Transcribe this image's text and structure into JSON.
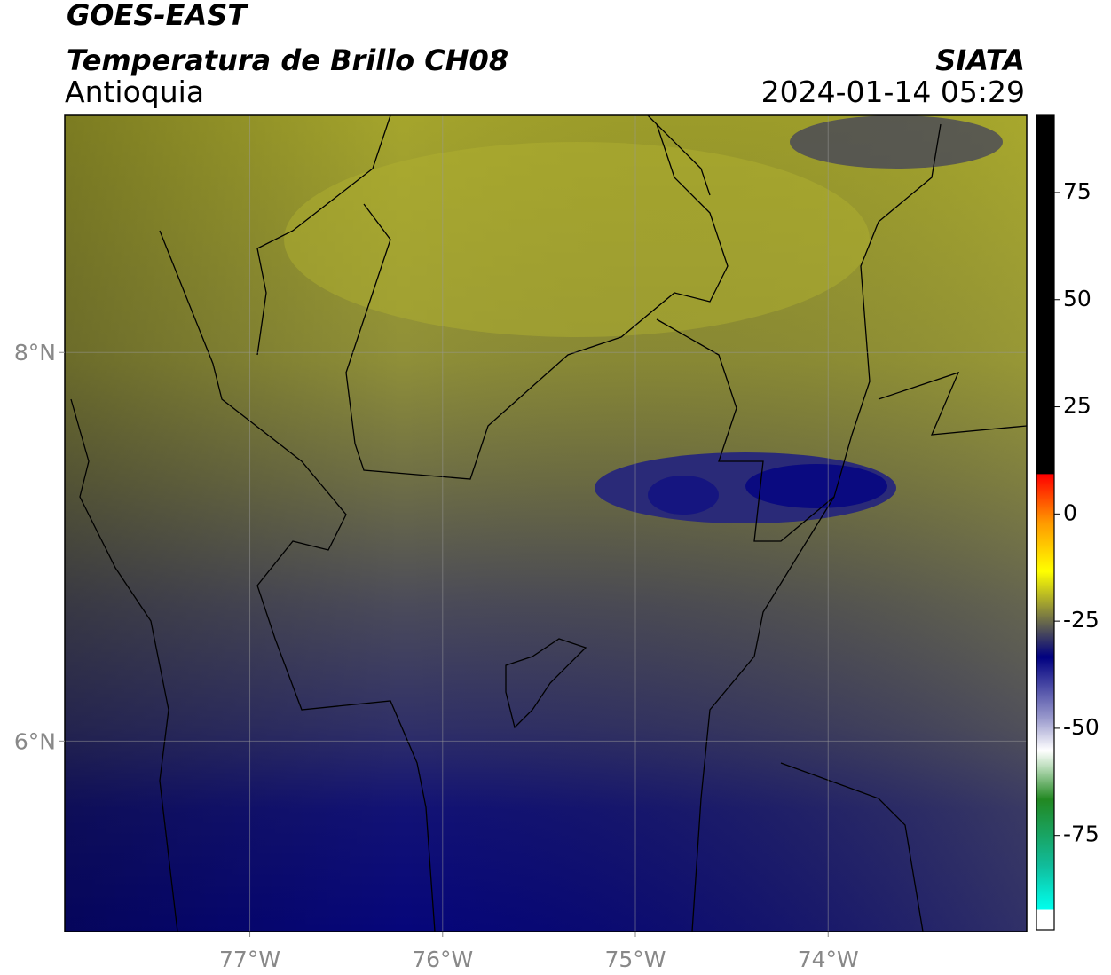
{
  "header": {
    "title": "GOES-EAST",
    "subtitle": "Temperatura de Brillo CH08",
    "region": "Antioquia",
    "source": "SIATA",
    "datetime": "2024-01-14 05:29"
  },
  "map": {
    "xlim": [
      -77.96,
      -72.97
    ],
    "ylim": [
      5.02,
      9.22
    ],
    "xticks": [
      {
        "value": -77,
        "label": "77°W"
      },
      {
        "value": -76,
        "label": "76°W"
      },
      {
        "value": -75,
        "label": "75°W"
      },
      {
        "value": -74,
        "label": "74°W"
      }
    ],
    "yticks": [
      {
        "value": 8,
        "label": "8°N"
      },
      {
        "value": 6,
        "label": "6°N"
      }
    ]
  },
  "colorbar": {
    "range": [
      -97,
      93
    ],
    "ticks": [
      75,
      50,
      25,
      0,
      -25,
      -50,
      -75
    ]
  }
}
